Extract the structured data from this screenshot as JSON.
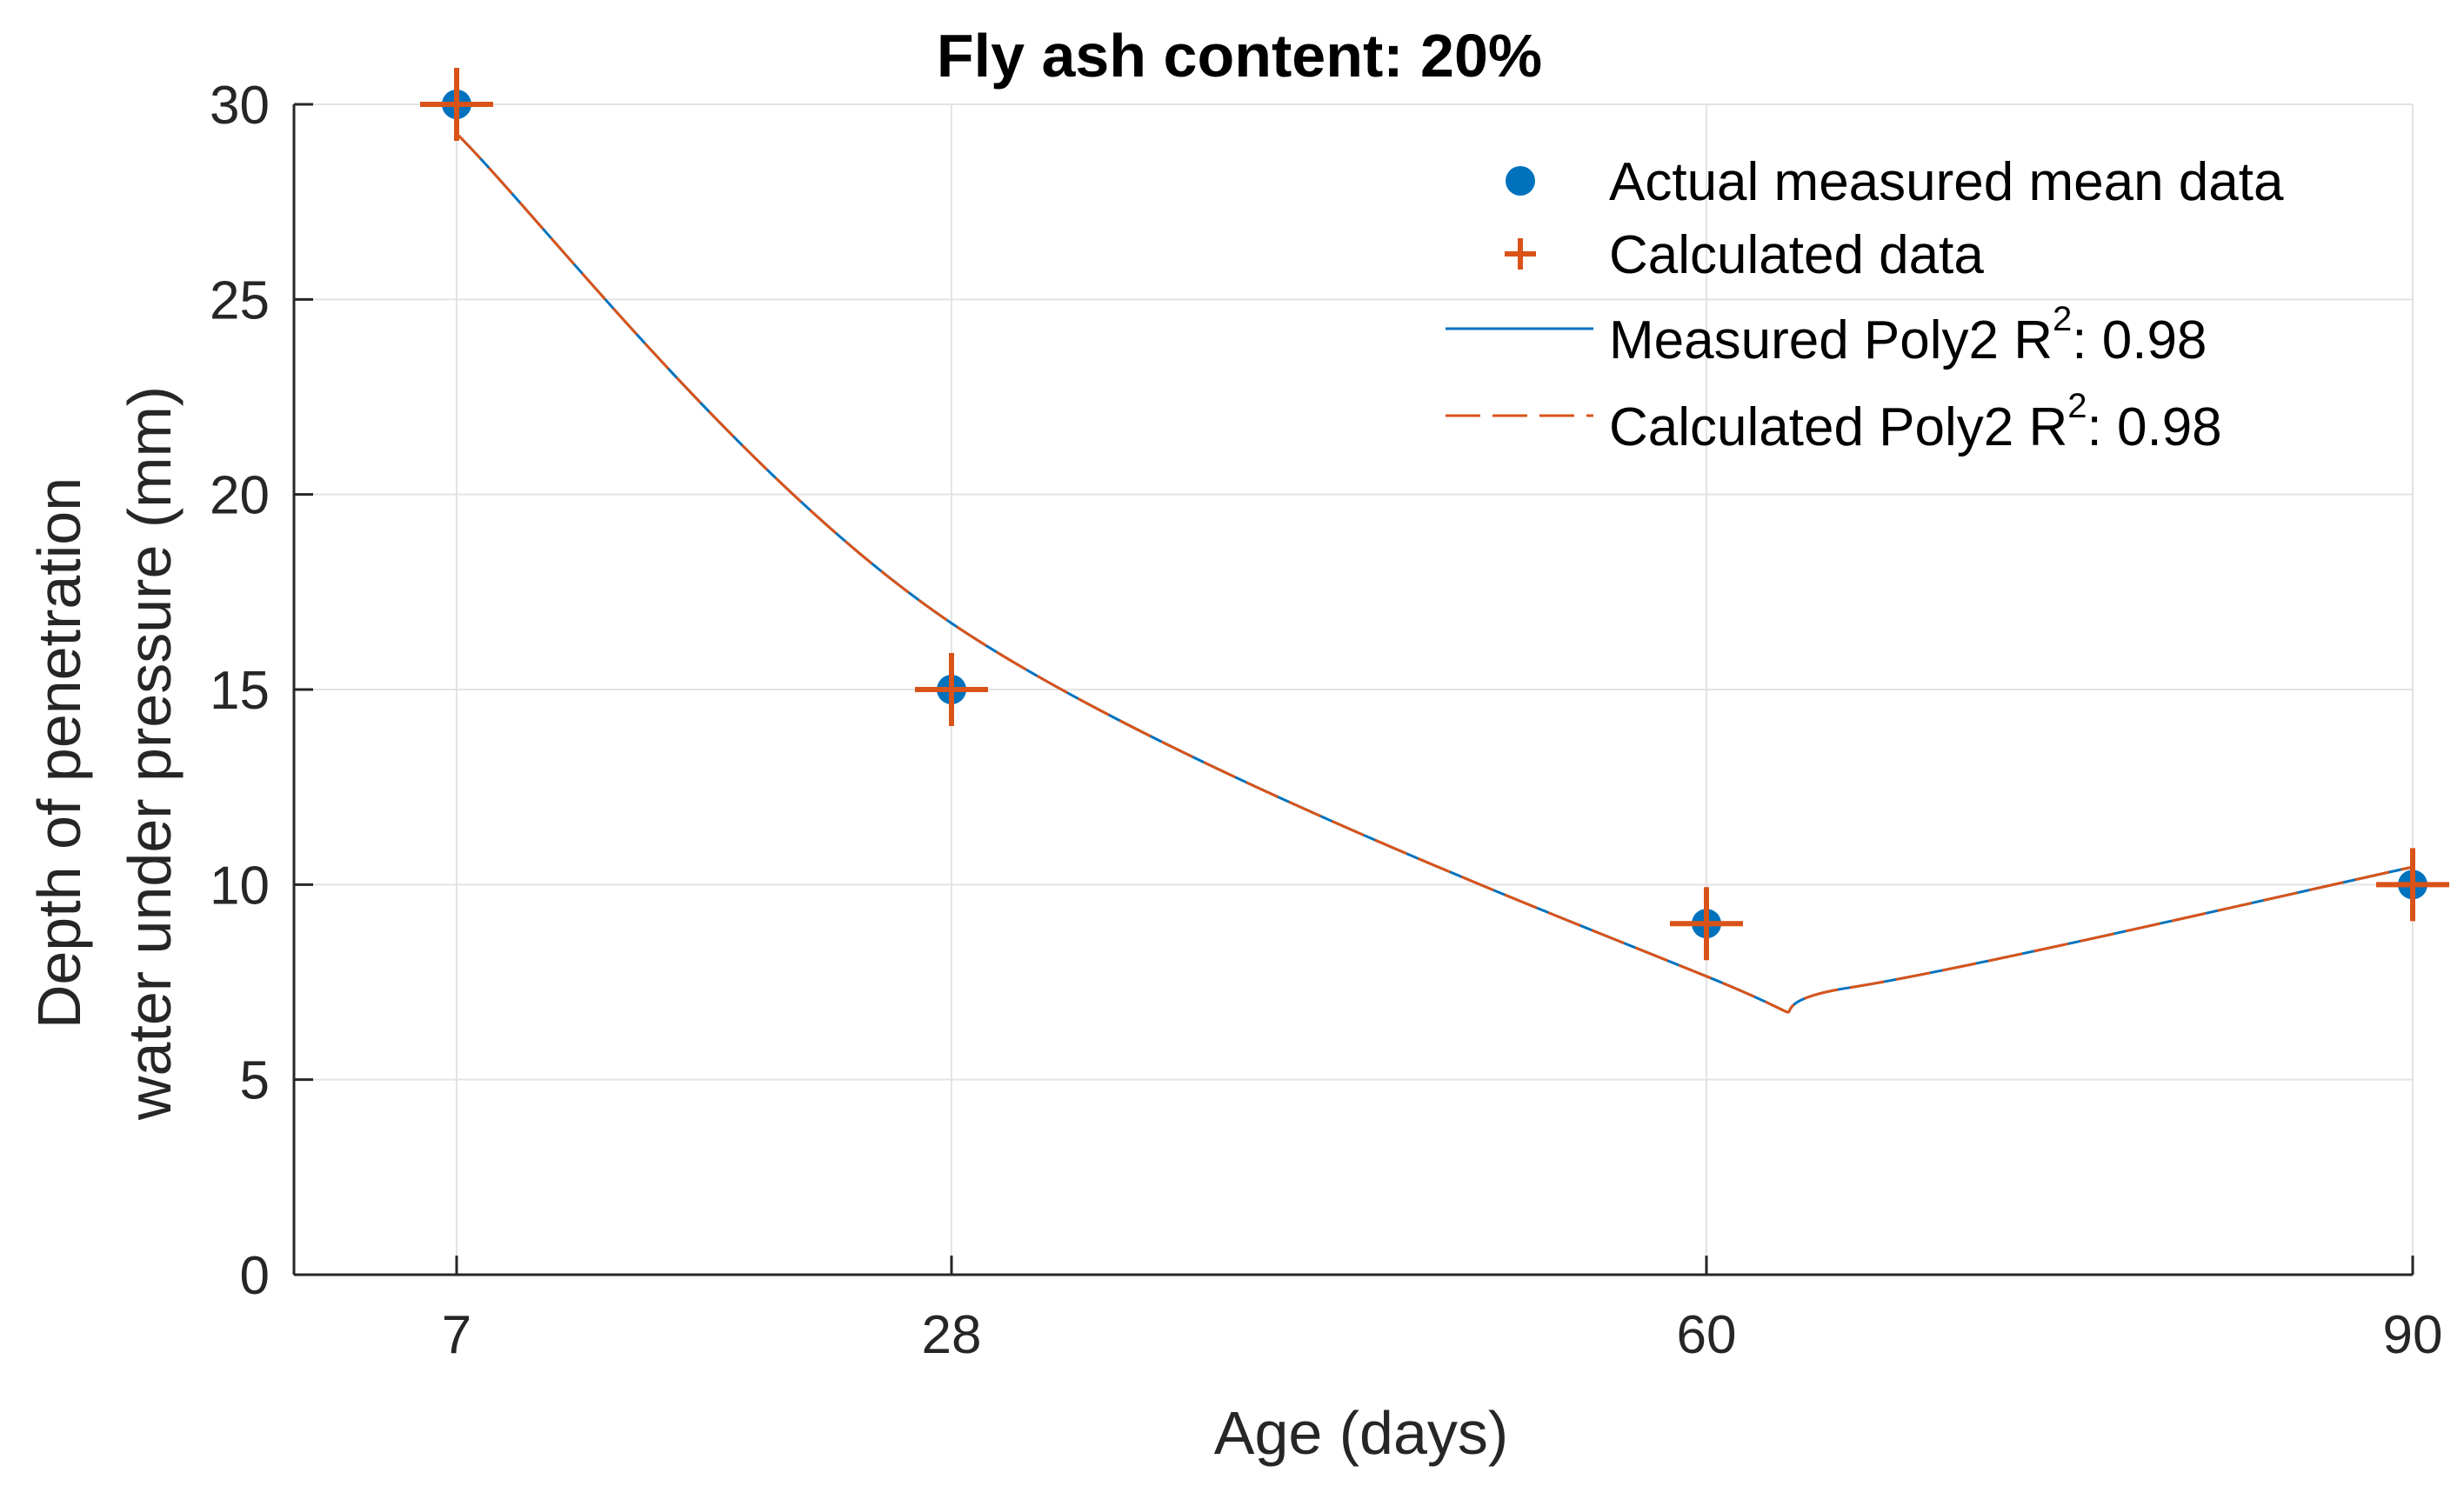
{
  "chart_data": {
    "type": "scatter",
    "title": "Fly ash content: 20%",
    "xlabel": "Age (days)",
    "ylabel_lines": [
      "Depth of penetration",
      "water under pressure (mm)"
    ],
    "categories": [
      "7",
      "28",
      "60",
      "90"
    ],
    "x": [
      7,
      28,
      60,
      90
    ],
    "xlim": [
      0,
      90
    ],
    "ylim": [
      0,
      30
    ],
    "yticks": [
      "0",
      "5",
      "10",
      "15",
      "20",
      "25",
      "30"
    ],
    "grid": true,
    "legend_position": "top-right",
    "series": [
      {
        "name": "Actual measured mean data",
        "kind": "scatter",
        "marker": "circle",
        "color": "#0072BD",
        "values": [
          30,
          15,
          9,
          10
        ]
      },
      {
        "name": "Calculated data",
        "kind": "scatter",
        "marker": "plus",
        "color": "#D95319",
        "values": [
          30,
          15,
          9,
          10
        ]
      },
      {
        "name": "Measured Poly2 R",
        "kind": "fit",
        "line": "solid",
        "color": "#0072BD",
        "r2": "0.98"
      },
      {
        "name": "Calculated Poly2 R",
        "kind": "fit",
        "line": "dashed",
        "color": "#D95319",
        "r2": "0.98"
      }
    ],
    "fit_values": [
      29.25,
      16.7,
      7.65,
      7.35,
      10.45
    ],
    "fit_x": [
      7,
      28,
      60,
      66,
      90
    ],
    "legend": {
      "superscript": "2",
      "separator": ": ",
      "r2_value": "0.98"
    }
  }
}
